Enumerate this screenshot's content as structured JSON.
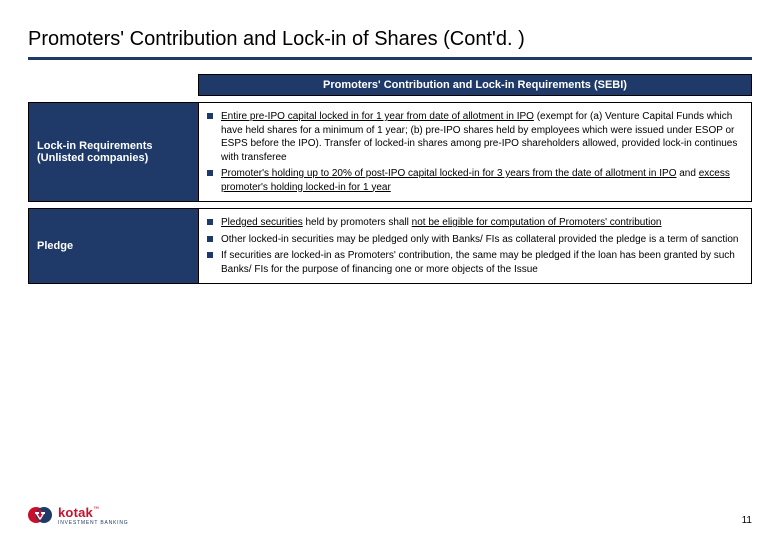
{
  "title": "Promoters' Contribution and Lock-in of Shares (Cont'd. )",
  "sectionHeader": "Promoters' Contribution and Lock-in Requirements (SEBI)",
  "rows": [
    {
      "label": "Lock-in Requirements (Unlisted companies)",
      "bullets": [
        "<span class='u'>Entire pre-IPO capital locked in for 1 year from date of allotment in IPO</span> (exempt for (a) Venture Capital Funds which have held shares for a minimum of 1 year; (b) pre-IPO shares held by employees which were issued under ESOP or ESPS before the IPO). Transfer of locked-in shares among pre-IPO shareholders allowed, provided lock-in continues with transferee",
        "<span class='u'>Promoter's holding up to 20% of post-IPO capital locked-in for 3 years from the date of allotment in IPO</span> and <span class='u'>excess promoter's holding locked-in for 1 year</span>"
      ]
    },
    {
      "label": "Pledge",
      "bullets": [
        "<span class='u'>Pledged securities</span> held by promoters shall <span class='u'>not be eligible for computation of Promoters' contribution</span>",
        "Other locked-in securities may be pledged only with Banks/ FIs as collateral provided the pledge is a term of sanction",
        "If securities are locked-in as Promoters' contribution, the same may be pledged if the loan has been granted by such Banks/ FIs for the purpose of financing one or more objects of the Issue"
      ]
    }
  ],
  "logo": {
    "name": "kotak",
    "sub": "Investment Banking",
    "colors": {
      "red": "#c8102e",
      "blue": "#1f3a68"
    }
  },
  "pageNumber": "11"
}
